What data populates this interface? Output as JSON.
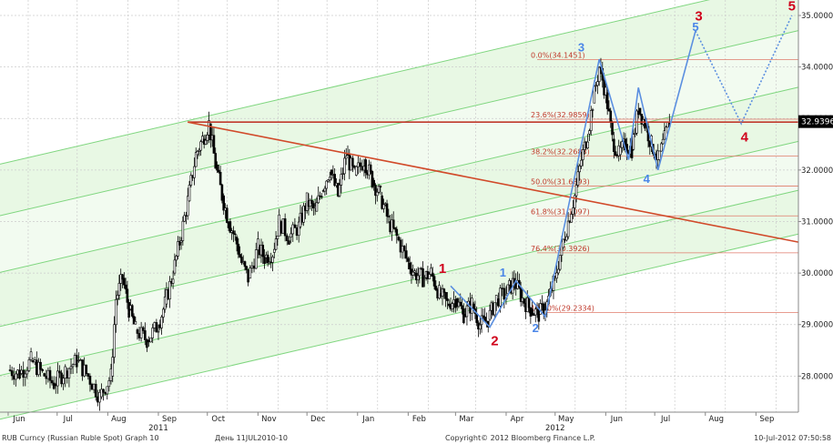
{
  "chart_data": {
    "type": "candlestick",
    "y_ticks": [
      "35.0000",
      "34.0000",
      "33.0000",
      "32.0000",
      "31.0000",
      "30.0000",
      "29.0000",
      "28.0000"
    ],
    "y_tick_values": [
      35,
      34,
      33,
      32,
      31,
      30,
      29,
      28
    ],
    "ylim": [
      27.3,
      35.3
    ],
    "x_months": [
      "Jun",
      "Jul",
      "Aug",
      "Sep",
      "Oct",
      "Nov",
      "Dec",
      "Jan",
      "Feb",
      "Mar",
      "Apr",
      "May",
      "Jun",
      "Jul",
      "Aug",
      "Sep"
    ],
    "x_month_dates": [
      "2011-06-01",
      "2011-07-01",
      "2011-08-01",
      "2011-09-01",
      "2011-10-01",
      "2011-11-01",
      "2011-12-01",
      "2012-01-01",
      "2012-02-01",
      "2012-03-01",
      "2012-04-01",
      "2012-05-01",
      "2012-06-01",
      "2012-07-01",
      "2012-08-01",
      "2012-09-01"
    ],
    "x_years": [
      {
        "label": "2011",
        "date": "2011-09-01"
      },
      {
        "label": "2012",
        "date": "2012-05-01"
      }
    ],
    "xlim": [
      "2011-05-27",
      "2012-09-27"
    ],
    "grid": true,
    "last_price": {
      "label": "32.9396",
      "value": 32.9396
    },
    "fib_levels": [
      {
        "label": "0.0%(34.1451)",
        "value": 34.1451
      },
      {
        "label": "23.6%(32.9859)",
        "value": 32.9859
      },
      {
        "label": "38.2%(32.2688)",
        "value": 32.2688
      },
      {
        "label": "50.0%(31.6893)",
        "value": 31.6893
      },
      {
        "label": "61.8%(31.1097)",
        "value": 31.1097
      },
      {
        "label": "76.4%(30.3926)",
        "value": 30.3926
      },
      {
        "label": "100.0%(29.2334)",
        "value": 29.2334
      }
    ],
    "waves_red": [
      {
        "label": "1",
        "date": "2012-02-22",
        "value": 30.0
      },
      {
        "label": "2",
        "date": "2012-03-25",
        "value": 28.6
      },
      {
        "label": "3",
        "date": "2012-07-28",
        "value": 34.9
      },
      {
        "label": "4",
        "date": "2012-08-25",
        "value": 32.55
      },
      {
        "label": "5",
        "date": "2012-09-23",
        "value": 35.1
      }
    ],
    "waves_blue": [
      {
        "label": "1",
        "date": "2012-03-30",
        "value": 29.93
      },
      {
        "label": "2",
        "date": "2012-04-19",
        "value": 28.85
      },
      {
        "label": "3",
        "date": "2012-05-17",
        "value": 34.3
      },
      {
        "label": "4",
        "date": "2012-06-26",
        "value": 31.75
      },
      {
        "label": "5",
        "date": "2012-07-26",
        "value": 34.7
      }
    ],
    "blue_path_solid": [
      {
        "date": "2012-02-27",
        "value": 29.75
      },
      {
        "date": "2012-03-22",
        "value": 28.95
      },
      {
        "date": "2012-04-07",
        "value": 29.85
      },
      {
        "date": "2012-04-25",
        "value": 29.15
      },
      {
        "date": "2012-05-28",
        "value": 34.15
      },
      {
        "date": "2012-06-15",
        "value": 32.2
      },
      {
        "date": "2012-06-21",
        "value": 33.6
      },
      {
        "date": "2012-07-03",
        "value": 32.0
      },
      {
        "date": "2012-07-26",
        "value": 34.7
      }
    ],
    "blue_path_dotted": [
      {
        "date": "2012-07-26",
        "value": 34.7
      },
      {
        "date": "2012-08-23",
        "value": 32.9
      },
      {
        "date": "2012-09-23",
        "value": 35.0
      }
    ],
    "resistance_line": {
      "value": 32.93,
      "from": "2011-09-19",
      "to": "2012-09-27"
    },
    "trend_line": {
      "from": {
        "date": "2011-09-19",
        "value": 32.93
      },
      "to": {
        "date": "2012-09-27",
        "value": 30.6
      }
    },
    "channel": {
      "anchor_date": "2011-06-01",
      "anchor_values": [
        32.15,
        31.15,
        30.05,
        29.0,
        28.05,
        27.2
      ],
      "slope_per_month": 0.2237
    },
    "close_series": [
      {
        "date": "2011-06-01",
        "value": 28.12
      },
      {
        "date": "2011-06-08",
        "value": 28.05
      },
      {
        "date": "2011-06-15",
        "value": 28.3
      },
      {
        "date": "2011-06-22",
        "value": 28.05
      },
      {
        "date": "2011-06-29",
        "value": 27.85
      },
      {
        "date": "2011-07-06",
        "value": 28.1
      },
      {
        "date": "2011-07-13",
        "value": 28.3
      },
      {
        "date": "2011-07-20",
        "value": 28.0
      },
      {
        "date": "2011-07-27",
        "value": 27.6
      },
      {
        "date": "2011-08-03",
        "value": 28.0
      },
      {
        "date": "2011-08-06",
        "value": 29.5
      },
      {
        "date": "2011-08-10",
        "value": 29.9
      },
      {
        "date": "2011-08-14",
        "value": 29.3
      },
      {
        "date": "2011-08-18",
        "value": 28.9
      },
      {
        "date": "2011-08-25",
        "value": 28.7
      },
      {
        "date": "2011-09-01",
        "value": 29.0
      },
      {
        "date": "2011-09-05",
        "value": 29.4
      },
      {
        "date": "2011-09-10",
        "value": 30.0
      },
      {
        "date": "2011-09-14",
        "value": 30.6
      },
      {
        "date": "2011-09-19",
        "value": 31.4
      },
      {
        "date": "2011-09-24",
        "value": 32.3
      },
      {
        "date": "2011-09-28",
        "value": 32.6
      },
      {
        "date": "2011-10-02",
        "value": 32.9
      },
      {
        "date": "2011-10-06",
        "value": 32.1
      },
      {
        "date": "2011-10-10",
        "value": 31.5
      },
      {
        "date": "2011-10-14",
        "value": 31.0
      },
      {
        "date": "2011-10-18",
        "value": 30.7
      },
      {
        "date": "2011-10-22",
        "value": 30.2
      },
      {
        "date": "2011-10-26",
        "value": 29.9
      },
      {
        "date": "2011-11-01",
        "value": 30.5
      },
      {
        "date": "2011-11-05",
        "value": 30.3
      },
      {
        "date": "2011-11-10",
        "value": 30.4
      },
      {
        "date": "2011-11-14",
        "value": 31.0
      },
      {
        "date": "2011-11-20",
        "value": 30.7
      },
      {
        "date": "2011-11-26",
        "value": 30.9
      },
      {
        "date": "2011-12-01",
        "value": 31.4
      },
      {
        "date": "2011-12-06",
        "value": 31.2
      },
      {
        "date": "2011-12-10",
        "value": 31.6
      },
      {
        "date": "2011-12-15",
        "value": 32.0
      },
      {
        "date": "2011-12-20",
        "value": 31.5
      },
      {
        "date": "2011-12-25",
        "value": 32.3
      },
      {
        "date": "2011-12-30",
        "value": 31.9
      },
      {
        "date": "2012-01-05",
        "value": 32.2
      },
      {
        "date": "2012-01-10",
        "value": 31.8
      },
      {
        "date": "2012-01-15",
        "value": 31.5
      },
      {
        "date": "2012-01-20",
        "value": 31.0
      },
      {
        "date": "2012-01-25",
        "value": 30.7
      },
      {
        "date": "2012-02-01",
        "value": 30.2
      },
      {
        "date": "2012-02-05",
        "value": 30.0
      },
      {
        "date": "2012-02-10",
        "value": 29.9
      },
      {
        "date": "2012-02-15",
        "value": 30.0
      },
      {
        "date": "2012-02-20",
        "value": 29.6
      },
      {
        "date": "2012-02-25",
        "value": 29.4
      },
      {
        "date": "2012-03-01",
        "value": 29.5
      },
      {
        "date": "2012-03-06",
        "value": 29.2
      },
      {
        "date": "2012-03-11",
        "value": 29.4
      },
      {
        "date": "2012-03-16",
        "value": 29.0
      },
      {
        "date": "2012-03-21",
        "value": 29.1
      },
      {
        "date": "2012-03-26",
        "value": 29.5
      },
      {
        "date": "2012-04-01",
        "value": 29.6
      },
      {
        "date": "2012-04-06",
        "value": 29.85
      },
      {
        "date": "2012-04-11",
        "value": 29.5
      },
      {
        "date": "2012-04-16",
        "value": 29.3
      },
      {
        "date": "2012-04-21",
        "value": 29.2
      },
      {
        "date": "2012-04-26",
        "value": 29.4
      },
      {
        "date": "2012-05-01",
        "value": 29.9
      },
      {
        "date": "2012-05-05",
        "value": 30.5
      },
      {
        "date": "2012-05-09",
        "value": 31.0
      },
      {
        "date": "2012-05-13",
        "value": 31.5
      },
      {
        "date": "2012-05-17",
        "value": 32.2
      },
      {
        "date": "2012-05-21",
        "value": 32.7
      },
      {
        "date": "2012-05-24",
        "value": 33.3
      },
      {
        "date": "2012-05-28",
        "value": 34.0
      },
      {
        "date": "2012-06-01",
        "value": 33.5
      },
      {
        "date": "2012-06-05",
        "value": 32.6
      },
      {
        "date": "2012-06-09",
        "value": 32.3
      },
      {
        "date": "2012-06-13",
        "value": 32.5
      },
      {
        "date": "2012-06-17",
        "value": 32.4
      },
      {
        "date": "2012-06-21",
        "value": 33.2
      },
      {
        "date": "2012-06-25",
        "value": 32.9
      },
      {
        "date": "2012-06-29",
        "value": 32.5
      },
      {
        "date": "2012-07-03",
        "value": 32.2
      },
      {
        "date": "2012-07-07",
        "value": 32.6
      },
      {
        "date": "2012-07-10",
        "value": 32.94
      }
    ]
  },
  "footer": {
    "left": "RUB Curncy (Russian Ruble Spot) Graph 10",
    "center": "День 11JUL2010-10",
    "copyright": "Copyright© 2012 Bloomberg Finance L.P.",
    "timestamp": "10-Jul-2012 07:50:58"
  },
  "colors": {
    "channel_line": "#7fd67f",
    "channel_fill": "#e8f8e4",
    "resistance": "#c0392b",
    "trend": "#d14a2a",
    "fib": "#e07a6a",
    "wave_red": "#d0021b",
    "wave_blue": "#4a86e8",
    "blue_path": "#5b8fe0",
    "candle": "#000000",
    "grid": "#cccccc",
    "last_price_bg": "#000000"
  }
}
